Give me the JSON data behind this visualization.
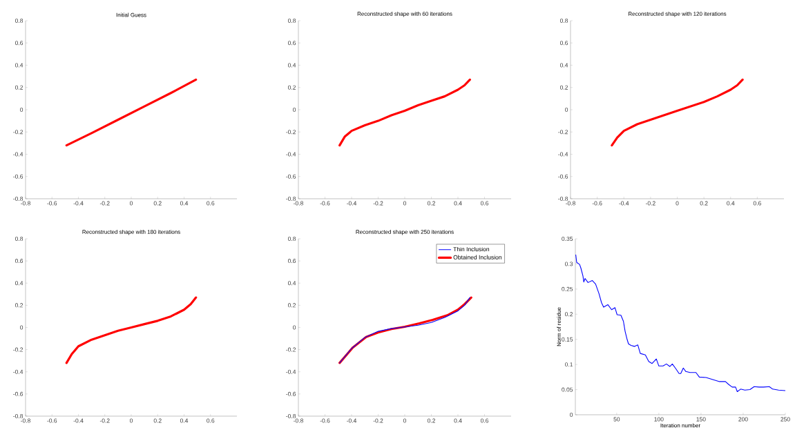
{
  "chart_data": [
    {
      "type": "line",
      "title": "Initial Guess",
      "xlim": [
        -0.8,
        0.8
      ],
      "ylim": [
        -0.8,
        0.8
      ],
      "xticks": [
        -0.8,
        -0.6,
        -0.4,
        -0.2,
        0,
        0.2,
        0.4,
        0.6
      ],
      "yticks": [
        -0.8,
        -0.6,
        -0.4,
        -0.2,
        0,
        0.2,
        0.4,
        0.6,
        0.8
      ],
      "grid": false,
      "series": [
        {
          "color": "#ff0000",
          "x": [
            -0.49,
            -0.3,
            -0.1,
            0.1,
            0.3,
            0.49
          ],
          "values": [
            -0.32,
            -0.21,
            -0.09,
            0.03,
            0.15,
            0.27
          ]
        }
      ]
    },
    {
      "type": "line",
      "title": "Reconstructed shape with 60 iterations",
      "xlim": [
        -0.8,
        0.8
      ],
      "ylim": [
        -0.8,
        0.8
      ],
      "xticks": [
        -0.8,
        -0.6,
        -0.4,
        -0.2,
        0,
        0.2,
        0.4,
        0.6
      ],
      "yticks": [
        -0.8,
        -0.6,
        -0.4,
        -0.2,
        0,
        0.2,
        0.4,
        0.6,
        0.8
      ],
      "grid": false,
      "series": [
        {
          "color": "#ff0000",
          "x": [
            -0.49,
            -0.45,
            -0.4,
            -0.3,
            -0.2,
            -0.1,
            0,
            0.1,
            0.2,
            0.3,
            0.4,
            0.45,
            0.49
          ],
          "values": [
            -0.32,
            -0.24,
            -0.19,
            -0.14,
            -0.1,
            -0.05,
            -0.01,
            0.04,
            0.08,
            0.12,
            0.18,
            0.22,
            0.27
          ]
        }
      ]
    },
    {
      "type": "line",
      "title": "Reconstructed shape with 120 iterations",
      "xlim": [
        -0.8,
        0.8
      ],
      "ylim": [
        -0.8,
        0.8
      ],
      "xticks": [
        -0.8,
        -0.6,
        -0.4,
        -0.2,
        0,
        0.2,
        0.4,
        0.6
      ],
      "yticks": [
        -0.8,
        -0.6,
        -0.4,
        -0.2,
        0,
        0.2,
        0.4,
        0.6,
        0.8
      ],
      "grid": false,
      "series": [
        {
          "color": "#ff0000",
          "x": [
            -0.49,
            -0.45,
            -0.4,
            -0.3,
            -0.2,
            -0.1,
            0,
            0.1,
            0.2,
            0.3,
            0.4,
            0.45,
            0.49
          ],
          "values": [
            -0.32,
            -0.25,
            -0.19,
            -0.13,
            -0.09,
            -0.05,
            -0.01,
            0.03,
            0.07,
            0.12,
            0.18,
            0.22,
            0.27
          ]
        }
      ]
    },
    {
      "type": "line",
      "title": "Reconstructed shape with 180 iterations",
      "xlim": [
        -0.8,
        0.8
      ],
      "ylim": [
        -0.8,
        0.8
      ],
      "xticks": [
        -0.8,
        -0.6,
        -0.4,
        -0.2,
        0,
        0.2,
        0.4,
        0.6
      ],
      "yticks": [
        -0.8,
        -0.6,
        -0.4,
        -0.2,
        0,
        0.2,
        0.4,
        0.6,
        0.8
      ],
      "grid": false,
      "series": [
        {
          "color": "#ff0000",
          "x": [
            -0.49,
            -0.45,
            -0.4,
            -0.3,
            -0.2,
            -0.1,
            0,
            0.1,
            0.2,
            0.3,
            0.4,
            0.45,
            0.49
          ],
          "values": [
            -0.32,
            -0.24,
            -0.17,
            -0.11,
            -0.07,
            -0.03,
            0.0,
            0.03,
            0.06,
            0.1,
            0.16,
            0.21,
            0.27
          ]
        }
      ]
    },
    {
      "type": "line",
      "title": "Reconstructed shape with 250 iterations",
      "xlim": [
        -0.8,
        0.8
      ],
      "ylim": [
        -0.8,
        0.8
      ],
      "xticks": [
        -0.8,
        -0.6,
        -0.4,
        -0.2,
        0,
        0.2,
        0.4,
        0.6
      ],
      "yticks": [
        -0.8,
        -0.6,
        -0.4,
        -0.2,
        0,
        0.2,
        0.4,
        0.6,
        0.8
      ],
      "grid": false,
      "legend": "top right",
      "series": [
        {
          "name": "Thin Inclusion",
          "color": "#0000ff",
          "x": [
            -0.49,
            -0.4,
            -0.3,
            -0.2,
            -0.1,
            0,
            0.1,
            0.2,
            0.3,
            0.4,
            0.45,
            0.49
          ],
          "values": [
            -0.32,
            -0.19,
            -0.09,
            -0.035,
            -0.01,
            0.005,
            0.02,
            0.045,
            0.09,
            0.15,
            0.2,
            0.27
          ]
        },
        {
          "name": "Obtained Inclusion",
          "color": "#ff0000",
          "x": [
            -0.49,
            -0.39,
            -0.29,
            -0.2,
            -0.1,
            0,
            0.11,
            0.21,
            0.32,
            0.4,
            0.45,
            0.5
          ],
          "values": [
            -0.32,
            -0.18,
            -0.086,
            -0.045,
            -0.014,
            0.006,
            0.037,
            0.068,
            0.11,
            0.16,
            0.21,
            0.27
          ]
        }
      ]
    },
    {
      "type": "line",
      "xlabel": "Iteration number",
      "ylabel": "Norm of residue",
      "xlim": [
        1,
        250
      ],
      "ylim": [
        0,
        0.35
      ],
      "xticks": [
        50,
        100,
        150,
        200,
        250
      ],
      "yticks": [
        0,
        0.05,
        0.1,
        0.15,
        0.2,
        0.25,
        0.3,
        0.35
      ],
      "grid": false,
      "series": [
        {
          "color": "#0000ff",
          "x": [
            1.5,
            2.6,
            6,
            7.5,
            10,
            11,
            12.5,
            16,
            21,
            25,
            29,
            32,
            34.5,
            39.5,
            44,
            48,
            50.5,
            55,
            58,
            60,
            62,
            64,
            67,
            71,
            75,
            78,
            84,
            88,
            92,
            97,
            100,
            105,
            109,
            113,
            116,
            120,
            124,
            126,
            129,
            132,
            137,
            144,
            148,
            156,
            164,
            172,
            179,
            183,
            187,
            191,
            193,
            197,
            202,
            208,
            213,
            219,
            224,
            231,
            235,
            242,
            250
          ],
          "values": [
            0.318,
            0.303,
            0.299,
            0.292,
            0.276,
            0.264,
            0.271,
            0.263,
            0.267,
            0.26,
            0.241,
            0.223,
            0.214,
            0.219,
            0.209,
            0.213,
            0.199,
            0.198,
            0.186,
            0.166,
            0.152,
            0.141,
            0.138,
            0.136,
            0.139,
            0.122,
            0.119,
            0.106,
            0.102,
            0.111,
            0.097,
            0.097,
            0.101,
            0.096,
            0.101,
            0.092,
            0.082,
            0.082,
            0.093,
            0.086,
            0.084,
            0.084,
            0.075,
            0.074,
            0.07,
            0.066,
            0.066,
            0.06,
            0.055,
            0.055,
            0.046,
            0.051,
            0.049,
            0.05,
            0.056,
            0.055,
            0.055,
            0.056,
            0.051,
            0.049,
            0.048
          ]
        }
      ]
    }
  ]
}
